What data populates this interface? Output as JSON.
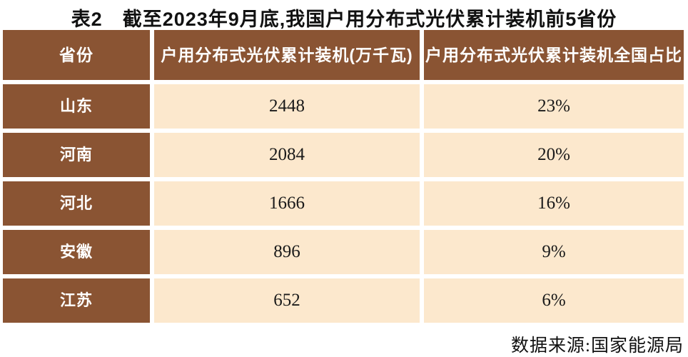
{
  "title": "表2　截至2023年9月底,我国户用分布式光伏累计装机前5省份",
  "table": {
    "headers": {
      "province": "省份",
      "capacity": "户用分布式光伏累计装机(万千瓦)",
      "share": "户用分布式光伏累计装机全国占比"
    },
    "rows": [
      {
        "province": "山东",
        "capacity": "2448",
        "share": "23%"
      },
      {
        "province": "河南",
        "capacity": "2084",
        "share": "20%"
      },
      {
        "province": "河北",
        "capacity": "1666",
        "share": "16%"
      },
      {
        "province": "安徽",
        "capacity": "896",
        "share": "9%"
      },
      {
        "province": "江苏",
        "capacity": "652",
        "share": "6%"
      }
    ]
  },
  "source": "数据来源:国家能源局",
  "colors": {
    "header_brown": "#8a5433",
    "cell_cream": "#fce8cd",
    "grid_gap_white": "#ffffff",
    "header_text": "#ffffff",
    "body_text": "#1a1a1a"
  }
}
